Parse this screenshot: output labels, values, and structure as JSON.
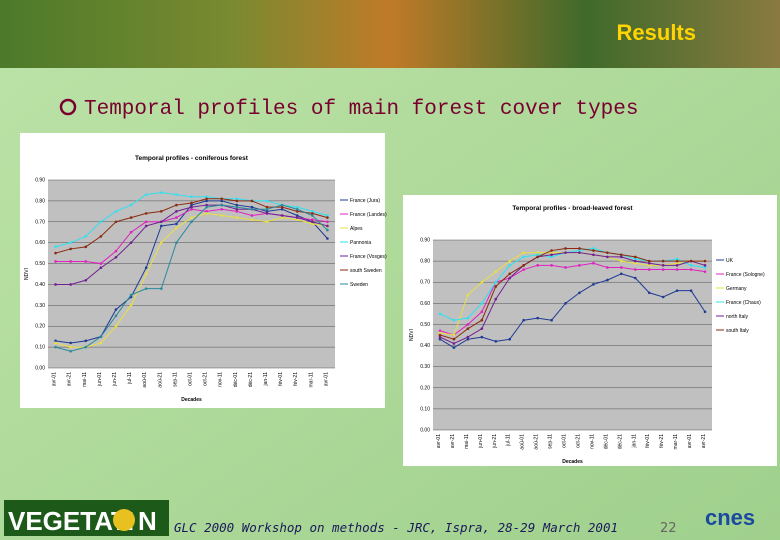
{
  "slide": {
    "header": "Results",
    "heading": "Temporal profiles of main forest cover types",
    "footer": "GLC 2000 Workshop on methods - JRC, Ispra, 28-29 March 2001",
    "page_number": "22",
    "logo_left": [
      "VEGETATI",
      "N"
    ],
    "logo_right": "cnes"
  },
  "chart_data": [
    {
      "type": "line",
      "title": "Temporal profiles - coniferous forest",
      "x_label": "Decades",
      "y_label": "NDVI",
      "categories": [
        "avr-01",
        "avr-21",
        "mai-11",
        "jun-01",
        "jun-21",
        "jul-11",
        "aoû-01",
        "aoû-21",
        "sep-11",
        "oct-01",
        "oct-21",
        "nov-11",
        "déc-01",
        "déc-21",
        "jan-11",
        "fév-01",
        "fév-21",
        "mar-11",
        "avr-01"
      ],
      "ylim": [
        0,
        0.9
      ],
      "yticks": [
        {
          "value": 0,
          "label": "0.00"
        },
        {
          "value": 0.1,
          "label": "0.10"
        },
        {
          "value": 0.2,
          "label": "0.20"
        },
        {
          "value": 0.3,
          "label": "0.30"
        },
        {
          "value": 0.4,
          "label": "0.40"
        },
        {
          "value": 0.5,
          "label": "0.50"
        },
        {
          "value": 0.6,
          "label": "0.60"
        },
        {
          "value": 0.7,
          "label": "0.70"
        },
        {
          "value": 0.8,
          "label": "0.80"
        },
        {
          "value": 0.9,
          "label": "0.90"
        }
      ],
      "grid": true,
      "series": [
        {
          "name": "France (Jura)",
          "color": "#1f3a93",
          "values": [
            0.13,
            0.12,
            0.13,
            0.15,
            0.28,
            0.34,
            0.48,
            0.68,
            0.69,
            0.78,
            0.8,
            0.8,
            0.78,
            0.77,
            0.75,
            0.76,
            0.73,
            0.7,
            0.62
          ]
        },
        {
          "name": "France (Landes)",
          "color": "#e020c0",
          "values": [
            0.51,
            0.51,
            0.51,
            0.5,
            0.56,
            0.65,
            0.7,
            0.7,
            0.72,
            0.76,
            0.75,
            0.76,
            0.75,
            0.73,
            0.74,
            0.73,
            0.72,
            0.71,
            0.7
          ]
        },
        {
          "name": "Alpes",
          "color": "#e8e040",
          "values": [
            0.12,
            0.1,
            0.1,
            0.12,
            0.2,
            0.3,
            0.45,
            0.6,
            0.67,
            0.72,
            0.74,
            0.73,
            0.72,
            0.71,
            0.7,
            0.72,
            0.71,
            0.69,
            0.68
          ]
        },
        {
          "name": "Pannonia",
          "color": "#30e0f0",
          "values": [
            0.58,
            0.6,
            0.63,
            0.7,
            0.75,
            0.78,
            0.83,
            0.84,
            0.83,
            0.82,
            0.82,
            0.81,
            0.81,
            0.8,
            0.8,
            0.78,
            0.77,
            0.75,
            0.73
          ]
        },
        {
          "name": "France (Vosges)",
          "color": "#702090",
          "values": [
            0.4,
            0.4,
            0.42,
            0.48,
            0.53,
            0.6,
            0.68,
            0.7,
            0.75,
            0.77,
            0.78,
            0.78,
            0.76,
            0.76,
            0.74,
            0.73,
            0.72,
            0.7,
            0.68
          ]
        },
        {
          "name": "south Sweden",
          "color": "#8a2a10",
          "values": [
            0.55,
            0.57,
            0.58,
            0.63,
            0.7,
            0.72,
            0.74,
            0.75,
            0.78,
            0.79,
            0.81,
            0.81,
            0.8,
            0.8,
            0.77,
            0.77,
            0.75,
            0.74,
            0.72
          ]
        },
        {
          "name": "Sweden",
          "color": "#2a8a9a",
          "values": [
            0.1,
            0.08,
            0.1,
            0.15,
            0.25,
            0.35,
            0.38,
            0.38,
            0.6,
            0.7,
            0.77,
            0.78,
            0.77,
            0.76,
            0.76,
            0.78,
            0.76,
            0.73,
            0.66
          ]
        }
      ]
    },
    {
      "type": "line",
      "title": "Temporal profiles - broad-leaved forest",
      "x_label": "Decades",
      "y_label": "NDVI",
      "categories": [
        "avr-01",
        "avr-21",
        "mai-11",
        "jun-01",
        "jun-21",
        "jul-11",
        "aoû-01",
        "aoû-21",
        "sep-11",
        "oct-01",
        "oct-21",
        "nov-11",
        "déc-01",
        "déc-21",
        "jan-11",
        "fév-01",
        "fév-21",
        "mar-11",
        "avr-01",
        "avr-21"
      ],
      "ylim": [
        0,
        0.9
      ],
      "yticks": [
        {
          "value": 0,
          "label": "0.00"
        },
        {
          "value": 0.1,
          "label": "0.10"
        },
        {
          "value": 0.2,
          "label": "0.20"
        },
        {
          "value": 0.3,
          "label": "0.30"
        },
        {
          "value": 0.4,
          "label": "0.40"
        },
        {
          "value": 0.5,
          "label": "0.50"
        },
        {
          "value": 0.6,
          "label": "0.60"
        },
        {
          "value": 0.7,
          "label": "0.70"
        },
        {
          "value": 0.8,
          "label": "0.80"
        },
        {
          "value": 0.9,
          "label": "0.90"
        }
      ],
      "grid": true,
      "series": [
        {
          "name": "UK",
          "color": "#1f3a93",
          "values": [
            0.43,
            0.39,
            0.43,
            0.44,
            0.42,
            0.43,
            0.52,
            0.53,
            0.52,
            0.6,
            0.65,
            0.69,
            0.71,
            0.74,
            0.72,
            0.65,
            0.63,
            0.66,
            0.66,
            0.56
          ]
        },
        {
          "name": "France (Sologne)",
          "color": "#e020c0",
          "values": [
            0.47,
            0.45,
            0.5,
            0.56,
            0.7,
            0.72,
            0.76,
            0.78,
            0.78,
            0.77,
            0.78,
            0.79,
            0.77,
            0.77,
            0.76,
            0.76,
            0.76,
            0.76,
            0.76,
            0.75
          ]
        },
        {
          "name": "Germany",
          "color": "#e8e040",
          "values": [
            0.46,
            0.45,
            0.64,
            0.7,
            0.75,
            0.8,
            0.84,
            0.84,
            0.84,
            0.84,
            0.84,
            0.83,
            0.82,
            0.8,
            0.79,
            0.78,
            0.78,
            0.79,
            0.8,
            0.8
          ]
        },
        {
          "name": "France (Chaux)",
          "color": "#30e0f0",
          "values": [
            0.55,
            0.52,
            0.53,
            0.6,
            0.7,
            0.78,
            0.82,
            0.83,
            0.82,
            0.84,
            0.85,
            0.86,
            0.84,
            0.83,
            0.81,
            0.8,
            0.8,
            0.81,
            0.78,
            0.77
          ]
        },
        {
          "name": "north Italy",
          "color": "#702090",
          "values": [
            0.44,
            0.41,
            0.44,
            0.48,
            0.62,
            0.72,
            0.78,
            0.82,
            0.83,
            0.84,
            0.84,
            0.83,
            0.82,
            0.82,
            0.8,
            0.79,
            0.78,
            0.78,
            0.8,
            0.78
          ]
        },
        {
          "name": "south Italy",
          "color": "#8a2a10",
          "values": [
            0.45,
            0.43,
            0.48,
            0.52,
            0.68,
            0.74,
            0.78,
            0.82,
            0.85,
            0.86,
            0.86,
            0.85,
            0.84,
            0.83,
            0.82,
            0.8,
            0.8,
            0.8,
            0.8,
            0.8
          ]
        }
      ]
    }
  ]
}
